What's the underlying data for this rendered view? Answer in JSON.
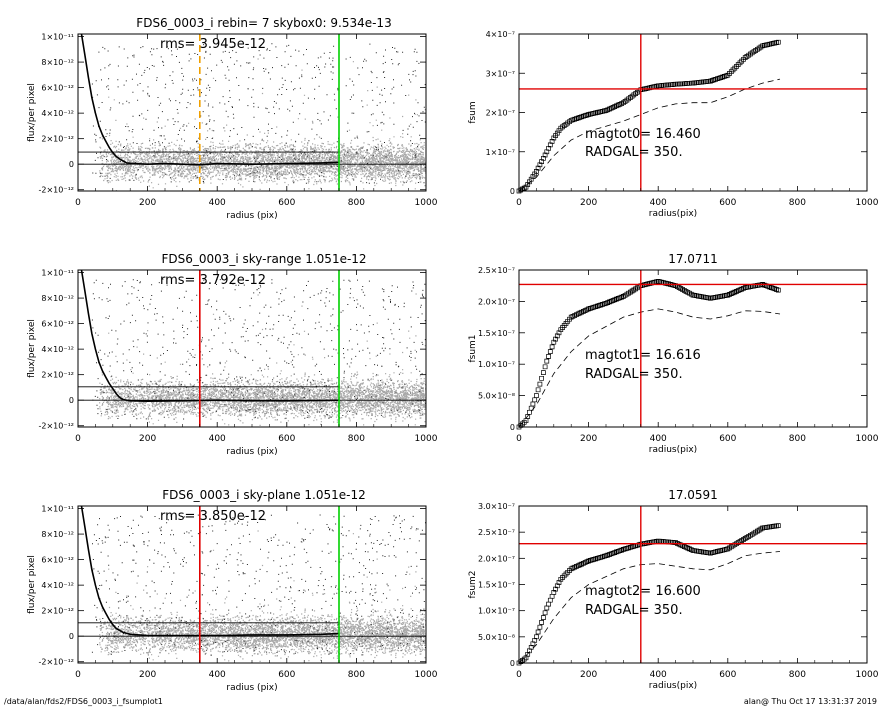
{
  "footer": {
    "path": "/data/alan/fds2/FDS6_0003_i_fsumplot1",
    "stamp": "alan@  Thu Oct 17 13:31:37 2019"
  },
  "chart_data": [
    {
      "type": "scatter",
      "title": "FDS6_0003_i rebin= 7    skybox0:  9.534e-13",
      "annotation": "rms= 3.945e-12",
      "xlabel": "radius (pix)",
      "ylabel": "flux/per pixel",
      "xlim": [
        0,
        1000
      ],
      "ylim": [
        -2.1e-12,
        1.02e-11
      ],
      "xticks": [
        0,
        200,
        400,
        600,
        800,
        1000
      ],
      "xtick_labels": [
        "0",
        "200",
        "400",
        "600",
        "800",
        "1000"
      ],
      "yticks": [
        -2e-12,
        0,
        2e-12,
        4e-12,
        6e-12,
        8e-12,
        1e-11
      ],
      "ytick_labels": [
        "-2×10⁻¹²",
        "0",
        "2×10⁻¹²",
        "4×10⁻¹²",
        "6×10⁻¹²",
        "8×10⁻¹²",
        "1×10⁻¹¹"
      ],
      "hlines": [
        {
          "y": 9.534e-13,
          "x_end": 750
        },
        {
          "y": 0,
          "x_end": 1000
        }
      ],
      "vlines": [
        {
          "x": 350,
          "color": "#f0a000",
          "style": "dashed"
        },
        {
          "x": 750,
          "color": "#00d000",
          "style": "solid"
        }
      ],
      "profile": [
        [
          10,
          1.02e-11
        ],
        [
          20,
          8.5e-12
        ],
        [
          30,
          6.8e-12
        ],
        [
          40,
          5.2e-12
        ],
        [
          50,
          4e-12
        ],
        [
          60,
          3e-12
        ],
        [
          70,
          2.3e-12
        ],
        [
          80,
          1.8e-12
        ],
        [
          90,
          1.3e-12
        ],
        [
          100,
          9e-13
        ],
        [
          110,
          6e-13
        ],
        [
          120,
          4e-13
        ],
        [
          130,
          2.5e-13
        ],
        [
          140,
          1e-13
        ],
        [
          160,
          5e-14
        ],
        [
          200,
          0.0
        ],
        [
          250,
          5e-14
        ],
        [
          300,
          0.0
        ],
        [
          350,
          -5e-14
        ],
        [
          400,
          5e-14
        ],
        [
          500,
          0.0
        ],
        [
          600,
          5e-14
        ],
        [
          700,
          1e-13
        ],
        [
          750,
          1.5e-13
        ]
      ]
    },
    {
      "type": "scatter",
      "title": "FDS6_0003_i sky-range  1.051e-12",
      "annotation": "rms= 3.792e-12",
      "xlabel": "radius (pix)",
      "ylabel": "flux/per pixel",
      "xlim": [
        0,
        1000
      ],
      "ylim": [
        -2.1e-12,
        1.02e-11
      ],
      "xticks": [
        0,
        200,
        400,
        600,
        800,
        1000
      ],
      "xtick_labels": [
        "0",
        "200",
        "400",
        "600",
        "800",
        "1000"
      ],
      "yticks": [
        -2e-12,
        0,
        2e-12,
        4e-12,
        6e-12,
        8e-12,
        1e-11
      ],
      "ytick_labels": [
        "-2×10⁻¹²",
        "0",
        "2×10⁻¹²",
        "4×10⁻¹²",
        "6×10⁻¹²",
        "8×10⁻¹²",
        "1×10⁻¹¹"
      ],
      "hlines": [
        {
          "y": 1.051e-12,
          "x_end": 750
        },
        {
          "y": 0,
          "x_end": 1000
        }
      ],
      "vlines": [
        {
          "x": 350,
          "color": "#e00000",
          "style": "solid"
        },
        {
          "x": 750,
          "color": "#00d000",
          "style": "solid"
        }
      ],
      "profile": [
        [
          10,
          1.02e-11
        ],
        [
          20,
          8.5e-12
        ],
        [
          30,
          6.8e-12
        ],
        [
          40,
          5.2e-12
        ],
        [
          50,
          4e-12
        ],
        [
          60,
          3e-12
        ],
        [
          70,
          2.3e-12
        ],
        [
          80,
          1.8e-12
        ],
        [
          90,
          1.3e-12
        ],
        [
          100,
          9e-13
        ],
        [
          110,
          5e-13
        ],
        [
          120,
          2e-13
        ],
        [
          130,
          5e-14
        ],
        [
          150,
          -5e-14
        ],
        [
          200,
          -8e-14
        ],
        [
          300,
          -5e-14
        ],
        [
          400,
          0.0
        ],
        [
          500,
          -5e-14
        ],
        [
          600,
          -5e-14
        ],
        [
          700,
          -2e-14
        ],
        [
          750,
          0.0
        ]
      ]
    },
    {
      "type": "scatter",
      "title": "FDS6_0003_i sky-plane  1.051e-12",
      "annotation": "rms= 3.850e-12",
      "xlabel": "radius (pix)",
      "ylabel": "flux/per pixel",
      "xlim": [
        0,
        1000
      ],
      "ylim": [
        -2.1e-12,
        1.02e-11
      ],
      "xticks": [
        0,
        200,
        400,
        600,
        800,
        1000
      ],
      "xtick_labels": [
        "0",
        "200",
        "400",
        "600",
        "800",
        "1000"
      ],
      "yticks": [
        -2e-12,
        0,
        2e-12,
        4e-12,
        6e-12,
        8e-12,
        1e-11
      ],
      "ytick_labels": [
        "-2×10⁻¹²",
        "0",
        "2×10⁻¹²",
        "4×10⁻¹²",
        "6×10⁻¹²",
        "8×10⁻¹²",
        "1×10⁻¹¹"
      ],
      "hlines": [
        {
          "y": 1.051e-12,
          "x_end": 750
        },
        {
          "y": 0,
          "x_end": 1000
        }
      ],
      "vlines": [
        {
          "x": 350,
          "color": "#e00000",
          "style": "solid"
        },
        {
          "x": 750,
          "color": "#00d000",
          "style": "solid"
        }
      ],
      "profile": [
        [
          10,
          1.02e-11
        ],
        [
          20,
          8.5e-12
        ],
        [
          30,
          6.8e-12
        ],
        [
          40,
          5.2e-12
        ],
        [
          50,
          4e-12
        ],
        [
          60,
          3e-12
        ],
        [
          70,
          2.3e-12
        ],
        [
          80,
          1.8e-12
        ],
        [
          90,
          1.3e-12
        ],
        [
          100,
          9e-13
        ],
        [
          110,
          6e-13
        ],
        [
          120,
          4.5e-13
        ],
        [
          130,
          3e-13
        ],
        [
          150,
          1.5e-13
        ],
        [
          200,
          5e-14
        ],
        [
          300,
          5e-14
        ],
        [
          400,
          5e-14
        ],
        [
          500,
          1e-13
        ],
        [
          600,
          1e-13
        ],
        [
          700,
          1.5e-13
        ],
        [
          750,
          2e-13
        ]
      ]
    },
    {
      "type": "line",
      "title": "",
      "annotations": [
        "magtot0=  16.460",
        "RADGAL=    350."
      ],
      "xlabel": "radius(pix)",
      "ylabel": "fsum",
      "xlim": [
        0,
        1000
      ],
      "ylim": [
        0,
        4e-07
      ],
      "xticks": [
        0,
        200,
        400,
        600,
        800,
        1000
      ],
      "xtick_labels": [
        "0",
        "200",
        "400",
        "600",
        "800",
        "1000"
      ],
      "yticks": [
        0,
        1e-07,
        2e-07,
        3e-07,
        4e-07
      ],
      "ytick_labels": [
        "0",
        "1×10⁻⁷",
        "2×10⁻⁷",
        "3×10⁻⁷",
        "4×10⁻⁷"
      ],
      "hline": 2.6e-07,
      "vline": 350,
      "series": [
        {
          "style": "markers",
          "points": [
            [
              0,
              0
            ],
            [
              20,
              1e-08
            ],
            [
              50,
              5e-08
            ],
            [
              80,
              1e-07
            ],
            [
              100,
              1.35e-07
            ],
            [
              120,
              1.6e-07
            ],
            [
              150,
              1.8e-07
            ],
            [
              200,
              1.95e-07
            ],
            [
              250,
              2.05e-07
            ],
            [
              300,
              2.25e-07
            ],
            [
              350,
              2.58e-07
            ],
            [
              400,
              2.68e-07
            ],
            [
              450,
              2.72e-07
            ],
            [
              500,
              2.75e-07
            ],
            [
              550,
              2.8e-07
            ],
            [
              600,
              2.95e-07
            ],
            [
              650,
              3.4e-07
            ],
            [
              700,
              3.7e-07
            ],
            [
              750,
              3.8e-07
            ]
          ]
        },
        {
          "style": "dashed",
          "points": [
            [
              0,
              0
            ],
            [
              50,
              3.5e-08
            ],
            [
              100,
              9e-08
            ],
            [
              150,
              1.3e-07
            ],
            [
              200,
              1.52e-07
            ],
            [
              250,
              1.65e-07
            ],
            [
              300,
              1.78e-07
            ],
            [
              350,
              1.95e-07
            ],
            [
              400,
              2.12e-07
            ],
            [
              450,
              2.22e-07
            ],
            [
              500,
              2.25e-07
            ],
            [
              550,
              2.25e-07
            ],
            [
              600,
              2.4e-07
            ],
            [
              650,
              2.6e-07
            ],
            [
              700,
              2.75e-07
            ],
            [
              750,
              2.85e-07
            ]
          ]
        }
      ]
    },
    {
      "type": "line",
      "title": "17.0711",
      "annotations": [
        "magtot1=  16.616",
        "RADGAL=    350."
      ],
      "xlabel": "radius(pix)",
      "ylabel": "fsum1",
      "xlim": [
        0,
        1000
      ],
      "ylim": [
        0,
        2.5e-07
      ],
      "xticks": [
        0,
        200,
        400,
        600,
        800,
        1000
      ],
      "xtick_labels": [
        "0",
        "200",
        "400",
        "600",
        "800",
        "1000"
      ],
      "yticks": [
        0,
        5e-08,
        1e-07,
        1.5e-07,
        2e-07,
        2.5e-07
      ],
      "ytick_labels": [
        "0",
        "5.0×10⁻⁸",
        "1.0×10⁻⁷",
        "1.5×10⁻⁷",
        "2.0×10⁻⁷",
        "2.5×10⁻⁷"
      ],
      "hline": 2.27e-07,
      "vline": 350,
      "series": [
        {
          "style": "markers",
          "points": [
            [
              0,
              0
            ],
            [
              20,
              1e-08
            ],
            [
              50,
              5e-08
            ],
            [
              80,
              1.05e-07
            ],
            [
              100,
              1.35e-07
            ],
            [
              120,
              1.55e-07
            ],
            [
              150,
              1.75e-07
            ],
            [
              200,
              1.88e-07
            ],
            [
              250,
              1.97e-07
            ],
            [
              300,
              2.08e-07
            ],
            [
              350,
              2.25e-07
            ],
            [
              400,
              2.32e-07
            ],
            [
              450,
              2.25e-07
            ],
            [
              500,
              2.1e-07
            ],
            [
              550,
              2.05e-07
            ],
            [
              600,
              2.1e-07
            ],
            [
              650,
              2.22e-07
            ],
            [
              700,
              2.27e-07
            ],
            [
              750,
              2.17e-07
            ]
          ]
        },
        {
          "style": "dashed",
          "points": [
            [
              0,
              0
            ],
            [
              50,
              3.5e-08
            ],
            [
              100,
              8.5e-08
            ],
            [
              150,
              1.2e-07
            ],
            [
              200,
              1.45e-07
            ],
            [
              250,
              1.6e-07
            ],
            [
              300,
              1.75e-07
            ],
            [
              350,
              1.83e-07
            ],
            [
              400,
              1.88e-07
            ],
            [
              450,
              1.83e-07
            ],
            [
              500,
              1.75e-07
            ],
            [
              550,
              1.72e-07
            ],
            [
              600,
              1.77e-07
            ],
            [
              650,
              1.85e-07
            ],
            [
              700,
              1.84e-07
            ],
            [
              750,
              1.8e-07
            ]
          ]
        }
      ]
    },
    {
      "type": "line",
      "title": "17.0591",
      "annotations": [
        "magtot2=  16.600",
        "RADGAL=    350."
      ],
      "xlabel": "radius(pix)",
      "ylabel": "fsum2",
      "xlim": [
        0,
        1000
      ],
      "ylim": [
        0,
        3e-07
      ],
      "xticks": [
        0,
        200,
        400,
        600,
        800,
        1000
      ],
      "xtick_labels": [
        "0",
        "200",
        "400",
        "600",
        "800",
        "1000"
      ],
      "yticks": [
        0,
        5e-08,
        1e-07,
        1.5e-07,
        2e-07,
        2.5e-07,
        3e-07
      ],
      "ytick_labels": [
        "0",
        "5.0×10⁻⁸",
        "1.0×10⁻⁷",
        "1.5×10⁻⁷",
        "2.0×10⁻⁷",
        "2.5×10⁻⁷",
        "3.0×10⁻⁷"
      ],
      "hline": 2.28e-07,
      "vline": 350,
      "series": [
        {
          "style": "markers",
          "points": [
            [
              0,
              0
            ],
            [
              20,
              1e-08
            ],
            [
              50,
              5e-08
            ],
            [
              80,
              1.05e-07
            ],
            [
              100,
              1.35e-07
            ],
            [
              120,
              1.6e-07
            ],
            [
              150,
              1.8e-07
            ],
            [
              200,
              1.95e-07
            ],
            [
              250,
              2.05e-07
            ],
            [
              300,
              2.17e-07
            ],
            [
              350,
              2.27e-07
            ],
            [
              400,
              2.33e-07
            ],
            [
              450,
              2.3e-07
            ],
            [
              500,
              2.15e-07
            ],
            [
              550,
              2.1e-07
            ],
            [
              600,
              2.18e-07
            ],
            [
              650,
              2.38e-07
            ],
            [
              700,
              2.58e-07
            ],
            [
              750,
              2.63e-07
            ]
          ]
        },
        {
          "style": "dashed",
          "points": [
            [
              0,
              0
            ],
            [
              50,
              3.5e-08
            ],
            [
              100,
              8.5e-08
            ],
            [
              150,
              1.25e-07
            ],
            [
              200,
              1.5e-07
            ],
            [
              250,
              1.65e-07
            ],
            [
              300,
              1.8e-07
            ],
            [
              350,
              1.88e-07
            ],
            [
              400,
              1.9e-07
            ],
            [
              450,
              1.85e-07
            ],
            [
              500,
              1.8e-07
            ],
            [
              550,
              1.78e-07
            ],
            [
              600,
              1.9e-07
            ],
            [
              650,
              2.05e-07
            ],
            [
              700,
              2.1e-07
            ],
            [
              750,
              2.13e-07
            ]
          ]
        }
      ]
    }
  ]
}
